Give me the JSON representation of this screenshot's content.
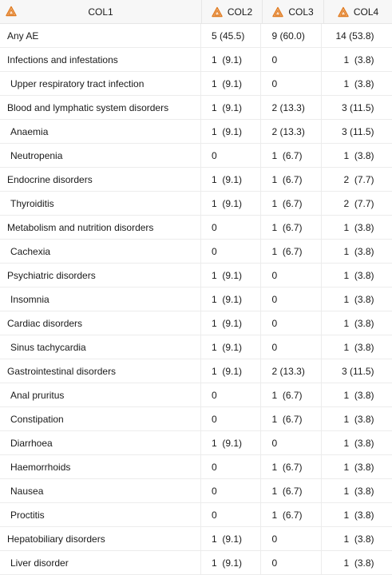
{
  "header": {
    "col1": "COL1",
    "col2": "COL2",
    "col3": "COL3",
    "col4": "COL4",
    "icon": "warning-triangle-icon",
    "icon_color": "#e07a1f"
  },
  "rows": [
    {
      "label": "Any AE",
      "indent": false,
      "c2": "5 (45.5)",
      "c3": "9 (60.0)",
      "c4": "14 (53.8)"
    },
    {
      "label": "Infections and infestations",
      "indent": false,
      "c2": "1  (9.1)",
      "c3": "0",
      "c4": "1  (3.8)"
    },
    {
      "label": "Upper respiratory tract infection",
      "indent": true,
      "c2": "1  (9.1)",
      "c3": "0",
      "c4": "1  (3.8)"
    },
    {
      "label": "Blood and lymphatic system disorders",
      "indent": false,
      "c2": "1  (9.1)",
      "c3": "2 (13.3)",
      "c4": "3 (11.5)"
    },
    {
      "label": "Anaemia",
      "indent": true,
      "c2": "1  (9.1)",
      "c3": "2 (13.3)",
      "c4": "3 (11.5)"
    },
    {
      "label": "Neutropenia",
      "indent": true,
      "c2": "0",
      "c3": "1  (6.7)",
      "c4": "1  (3.8)"
    },
    {
      "label": "Endocrine disorders",
      "indent": false,
      "c2": "1  (9.1)",
      "c3": "1  (6.7)",
      "c4": "2  (7.7)"
    },
    {
      "label": "Thyroiditis",
      "indent": true,
      "c2": "1  (9.1)",
      "c3": "1  (6.7)",
      "c4": "2  (7.7)"
    },
    {
      "label": "Metabolism and nutrition disorders",
      "indent": false,
      "c2": "0",
      "c3": "1  (6.7)",
      "c4": "1  (3.8)"
    },
    {
      "label": "Cachexia",
      "indent": true,
      "c2": "0",
      "c3": "1  (6.7)",
      "c4": "1  (3.8)"
    },
    {
      "label": "Psychiatric disorders",
      "indent": false,
      "c2": "1  (9.1)",
      "c3": "0",
      "c4": "1  (3.8)"
    },
    {
      "label": "Insomnia",
      "indent": true,
      "c2": "1  (9.1)",
      "c3": "0",
      "c4": "1  (3.8)"
    },
    {
      "label": "Cardiac disorders",
      "indent": false,
      "c2": "1  (9.1)",
      "c3": "0",
      "c4": "1  (3.8)"
    },
    {
      "label": "Sinus tachycardia",
      "indent": true,
      "c2": "1  (9.1)",
      "c3": "0",
      "c4": "1  (3.8)"
    },
    {
      "label": "Gastrointestinal disorders",
      "indent": false,
      "c2": "1  (9.1)",
      "c3": "2 (13.3)",
      "c4": "3 (11.5)"
    },
    {
      "label": "Anal pruritus",
      "indent": true,
      "c2": "0",
      "c3": "1  (6.7)",
      "c4": "1  (3.8)"
    },
    {
      "label": "Constipation",
      "indent": true,
      "c2": "0",
      "c3": "1  (6.7)",
      "c4": "1  (3.8)"
    },
    {
      "label": "Diarrhoea",
      "indent": true,
      "c2": "1  (9.1)",
      "c3": "0",
      "c4": "1  (3.8)"
    },
    {
      "label": "Haemorrhoids",
      "indent": true,
      "c2": "0",
      "c3": "1  (6.7)",
      "c4": "1  (3.8)"
    },
    {
      "label": "Nausea",
      "indent": true,
      "c2": "0",
      "c3": "1  (6.7)",
      "c4": "1  (3.8)"
    },
    {
      "label": "Proctitis",
      "indent": true,
      "c2": "0",
      "c3": "1  (6.7)",
      "c4": "1  (3.8)"
    },
    {
      "label": "Hepatobiliary disorders",
      "indent": false,
      "c2": "1  (9.1)",
      "c3": "0",
      "c4": "1  (3.8)"
    },
    {
      "label": "Liver disorder",
      "indent": true,
      "c2": "1  (9.1)",
      "c3": "0",
      "c4": "1  (3.8)"
    }
  ]
}
